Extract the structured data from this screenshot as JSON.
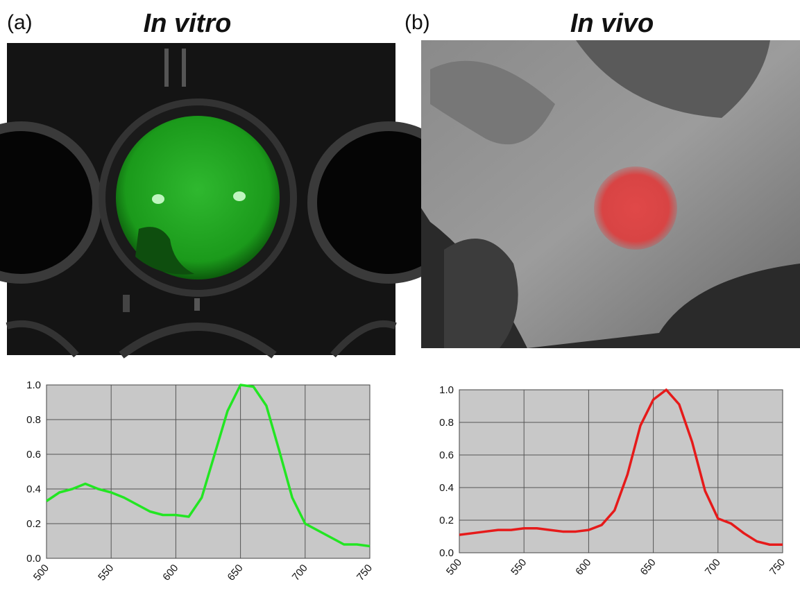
{
  "chart_data": [
    {
      "type": "line",
      "panel_label": "(a)",
      "title": "In vitro",
      "x": [
        500,
        510,
        520,
        530,
        540,
        550,
        560,
        570,
        580,
        590,
        600,
        610,
        620,
        630,
        640,
        650,
        660,
        670,
        680,
        690,
        700,
        710,
        720,
        730,
        740,
        750
      ],
      "values": [
        0.33,
        0.38,
        0.4,
        0.43,
        0.4,
        0.38,
        0.35,
        0.31,
        0.27,
        0.25,
        0.25,
        0.24,
        0.35,
        0.6,
        0.85,
        1.0,
        0.99,
        0.88,
        0.62,
        0.35,
        0.2,
        0.16,
        0.12,
        0.08,
        0.08,
        0.07
      ],
      "color": "#22e622",
      "xlim": [
        500,
        750
      ],
      "xticks": [
        500,
        550,
        600,
        650,
        700,
        750
      ],
      "ylim": [
        0,
        1
      ],
      "yticks": [
        {
          "value": 0,
          "label": "0.0"
        },
        0.2,
        0.4,
        0.6,
        0.8,
        {
          "value": 1,
          "label": "1.0"
        }
      ],
      "grid": true
    },
    {
      "type": "line",
      "panel_label": "(b)",
      "title": "In vivo",
      "x": [
        500,
        510,
        520,
        530,
        540,
        550,
        560,
        570,
        580,
        590,
        600,
        610,
        620,
        630,
        640,
        650,
        660,
        670,
        680,
        690,
        700,
        710,
        720,
        730,
        740,
        750
      ],
      "values": [
        0.11,
        0.12,
        0.13,
        0.14,
        0.14,
        0.15,
        0.15,
        0.14,
        0.13,
        0.13,
        0.14,
        0.17,
        0.26,
        0.48,
        0.78,
        0.94,
        1.0,
        0.91,
        0.68,
        0.38,
        0.21,
        0.18,
        0.12,
        0.07,
        0.05,
        0.05
      ],
      "color": "#e61a1a",
      "xlim": [
        500,
        750
      ],
      "xticks": [
        500,
        550,
        600,
        650,
        700,
        750
      ],
      "ylim": [
        0,
        1
      ],
      "yticks": [
        {
          "value": 0,
          "label": "0.0"
        },
        0.2,
        0.4,
        0.6,
        0.8,
        {
          "value": 1,
          "label": "1.0"
        }
      ],
      "grid": true
    }
  ]
}
